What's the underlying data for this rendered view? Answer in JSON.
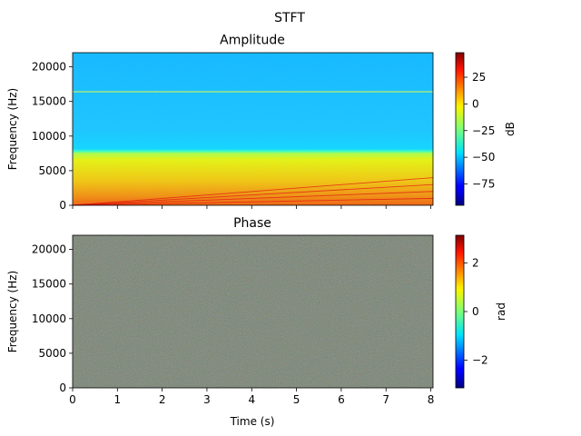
{
  "figure": {
    "title": "STFT"
  },
  "chart_data": [
    {
      "type": "heatmap",
      "title": "Amplitude",
      "xlabel": "",
      "ylabel": "Frequency (Hz)",
      "xlim": [
        0,
        8.05
      ],
      "ylim": [
        0,
        22050
      ],
      "x_ticks": [
        0,
        1,
        2,
        3,
        4,
        5,
        6,
        7,
        8
      ],
      "y_ticks": [
        0,
        5000,
        10000,
        15000,
        20000
      ],
      "y_tick_labels": [
        "0",
        "5000",
        "10000",
        "15000",
        "20000"
      ],
      "colorbar": {
        "label": "dB",
        "range": [
          -95,
          48
        ],
        "ticks": [
          25,
          0,
          -25,
          -50,
          -75
        ],
        "tick_labels": [
          "25",
          "0",
          "−25",
          "−50",
          "−75"
        ],
        "colormap": "jet"
      },
      "features": {
        "low_band_db": 20,
        "mid_band_db": -10,
        "high_band_db": -45,
        "mid_band_top_hz": 7500,
        "tone_hz": 16300,
        "chirp_lines": [
          {
            "t": [
              0,
              8.05
            ],
            "f": [
              0,
              4000
            ]
          },
          {
            "t": [
              0,
              8.05
            ],
            "f": [
              0,
              3000
            ]
          },
          {
            "t": [
              0,
              8.05
            ],
            "f": [
              0,
              2000
            ]
          },
          {
            "t": [
              0,
              8.05
            ],
            "f": [
              0,
              1000
            ]
          }
        ]
      }
    },
    {
      "type": "heatmap",
      "title": "Phase",
      "xlabel": "Time (s)",
      "ylabel": "Frequency (Hz)",
      "xlim": [
        0,
        8.05
      ],
      "ylim": [
        0,
        22050
      ],
      "x_ticks": [
        0,
        1,
        2,
        3,
        4,
        5,
        6,
        7,
        8
      ],
      "x_tick_labels": [
        "0",
        "1",
        "2",
        "3",
        "4",
        "5",
        "6",
        "7",
        "8"
      ],
      "y_ticks": [
        0,
        5000,
        10000,
        15000,
        20000
      ],
      "y_tick_labels": [
        "0",
        "5000",
        "10000",
        "15000",
        "20000"
      ],
      "colorbar": {
        "label": "rad",
        "range": [
          -3.1416,
          3.1416
        ],
        "ticks": [
          2,
          0,
          -2
        ],
        "tick_labels": [
          "2",
          "0",
          "−2"
        ],
        "colormap": "jet"
      },
      "features": {
        "distribution": "uniform-random",
        "base_color": "#7a8475"
      }
    }
  ]
}
